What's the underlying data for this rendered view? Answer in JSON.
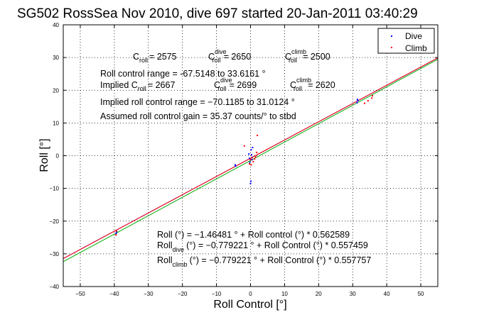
{
  "chart_data": {
    "type": "scatter",
    "title": "SG502 RossSea Nov 2010, dive 697 started 20-Jan-2011 03:40:29",
    "xlabel": "Roll Control [°]",
    "ylabel": "Roll [°]",
    "xlim": [
      -55,
      55
    ],
    "ylim": [
      -40,
      40
    ],
    "x_ticks": [
      -50,
      -40,
      -30,
      -20,
      -10,
      0,
      10,
      20,
      30,
      40,
      50
    ],
    "y_ticks": [
      -40,
      -30,
      -20,
      -10,
      0,
      10,
      20,
      30,
      40
    ],
    "x_tick_labels": [
      "−50",
      "−40",
      "−30",
      "−20",
      "−10",
      "0",
      "10",
      "20",
      "30",
      "40",
      "50"
    ],
    "y_tick_labels": [
      "−40",
      "−30",
      "−20",
      "−10",
      "0",
      "10",
      "20",
      "30",
      "40"
    ],
    "grid": true,
    "legend_position": "top-right",
    "legend": [
      {
        "label": "Dive",
        "color": "#0000ff"
      },
      {
        "label": "Climb",
        "color": "#ff0000"
      }
    ],
    "series": [
      {
        "name": "Dive",
        "color": "#0000ff",
        "points": [
          [
            -39.5,
            -23.8
          ],
          [
            -39.3,
            -23.3
          ],
          [
            -4.5,
            -2.8
          ],
          [
            -4.4,
            -3.2
          ],
          [
            -0.5,
            0.5
          ],
          [
            -0.3,
            -0.8
          ],
          [
            -0.2,
            -2.0
          ],
          [
            0.0,
            -8.5
          ],
          [
            0.1,
            -7.8
          ],
          [
            0.2,
            1.8
          ],
          [
            0.3,
            0.3
          ],
          [
            0.4,
            -1.2
          ],
          [
            0.5,
            -0.5
          ],
          [
            0.6,
            2.5
          ],
          [
            31.3,
            16.2
          ],
          [
            31.4,
            17.2
          ],
          [
            31.5,
            16.8
          ]
        ]
      },
      {
        "name": "Climb",
        "color": "#ff0000",
        "points": [
          [
            -39.5,
            -24.2
          ],
          [
            -39.4,
            -23.0
          ],
          [
            -0.3,
            -2.5
          ],
          [
            0.0,
            -1.2
          ],
          [
            0.2,
            -2.8
          ],
          [
            0.4,
            -0.6
          ],
          [
            0.8,
            -1.8
          ],
          [
            1.2,
            -1.0
          ],
          [
            1.5,
            -0.4
          ],
          [
            1.8,
            1.0
          ],
          [
            2.0,
            6.2
          ],
          [
            -1.8,
            3.0
          ],
          [
            33.5,
            16.0
          ],
          [
            34.5,
            16.8
          ],
          [
            35.6,
            17.6
          ],
          [
            35.8,
            18.3
          ]
        ]
      }
    ],
    "fit_lines": [
      {
        "color": "#00aa00",
        "intercept": -1.46481,
        "slope": 0.562589
      },
      {
        "color": "#0000ff",
        "intercept": -0.779221,
        "slope": 0.557459
      },
      {
        "color": "#ff0000",
        "intercept": -0.779221,
        "slope": 0.557757
      }
    ],
    "annotations": {
      "c_roll_label": "C",
      "c_roll_sub": "roll",
      "c_roll_value": "= 2575",
      "c_dive_label": "C",
      "c_dive_sup": "dive",
      "c_dive_sub": "roll",
      "c_dive_value": "= 2650",
      "c_climb_label": "C",
      "c_climb_sup": "climb",
      "c_climb_sub": "roll",
      "c_climb_value": "= 2500",
      "range": "Roll control range = -67.5148 to 33.6161 °",
      "implied_prefix": "Implied C",
      "implied_sub": "roll",
      "implied_value": "= 2667",
      "implied_dive_label": "C",
      "implied_dive_sup": "dive",
      "implied_dive_sub": "roll",
      "implied_dive_value": "= 2699",
      "implied_climb_label": "C",
      "implied_climb_sup": "climb",
      "implied_climb_sub": "roll",
      "implied_climb_value": "= 2620",
      "implied_range": "Implied roll control range = −70.1185 to 31.0124 °",
      "gain": "Assumed roll control gain = 35.37 counts/° to stbd",
      "fit_all": "Roll (°) = −1.46481 ° + Roll control (°) * 0.562589",
      "fit_dive_prefix": "Roll",
      "fit_dive_sub": "dive",
      "fit_dive_rest": "(°) = −0.779221 ° + Roll Control (°) * 0.557459",
      "fit_climb_prefix": "Roll",
      "fit_climb_sub": "climb",
      "fit_climb_rest": "(°) = −0.779221 ° + Roll Control (°) * 0.557757"
    }
  }
}
